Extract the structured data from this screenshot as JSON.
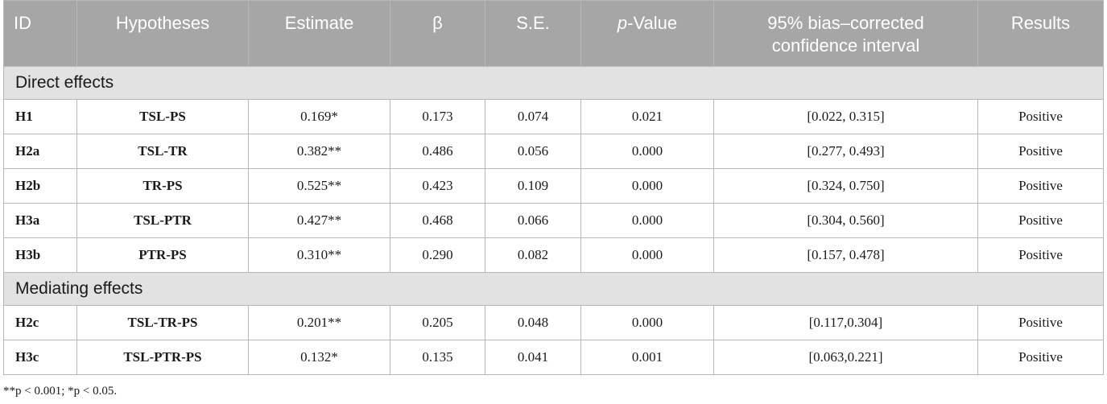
{
  "header": {
    "id": "ID",
    "hypotheses": "Hypotheses",
    "estimate": "Estimate",
    "beta": "β",
    "se": "S.E.",
    "p_italic": "p",
    "p_rest": "-Value",
    "ci_line1": "95% bias–corrected",
    "ci_line2": "confidence interval",
    "results": "Results"
  },
  "sections": {
    "direct": "Direct effects",
    "mediating": "Mediating effects"
  },
  "rows": [
    {
      "id": "H1",
      "hyp": "TSL-PS",
      "estimate": "0.169*",
      "beta": "0.173",
      "se": "0.074",
      "p": "0.021",
      "ci": "[0.022, 0.315]",
      "result": "Positive"
    },
    {
      "id": "H2a",
      "hyp": "TSL-TR",
      "estimate": "0.382**",
      "beta": "0.486",
      "se": "0.056",
      "p": "0.000",
      "ci": "[0.277, 0.493]",
      "result": "Positive"
    },
    {
      "id": "H2b",
      "hyp": "TR-PS",
      "estimate": "0.525**",
      "beta": "0.423",
      "se": "0.109",
      "p": "0.000",
      "ci": "[0.324, 0.750]",
      "result": "Positive"
    },
    {
      "id": "H3a",
      "hyp": "TSL-PTR",
      "estimate": "0.427**",
      "beta": "0.468",
      "se": "0.066",
      "p": "0.000",
      "ci": "[0.304, 0.560]",
      "result": "Positive"
    },
    {
      "id": "H3b",
      "hyp": "PTR-PS",
      "estimate": "0.310**",
      "beta": "0.290",
      "se": "0.082",
      "p": "0.000",
      "ci": "[0.157, 0.478]",
      "result": "Positive"
    },
    {
      "id": "H2c",
      "hyp": "TSL-TR-PS",
      "estimate": "0.201**",
      "beta": "0.205",
      "se": "0.048",
      "p": "0.000",
      "ci": "[0.117,0.304]",
      "result": "Positive"
    },
    {
      "id": "H3c",
      "hyp": "TSL-PTR-PS",
      "estimate": "0.132*",
      "beta": "0.135",
      "se": "0.041",
      "p": "0.001",
      "ci": "[0.063,0.221]",
      "result": "Positive"
    }
  ],
  "footnote": "**p < 0.001; *p < 0.05.",
  "colors": {
    "header_bg": "#a6a6a6",
    "section_bg": "#e2e2e2",
    "border": "#b7b7b7"
  }
}
